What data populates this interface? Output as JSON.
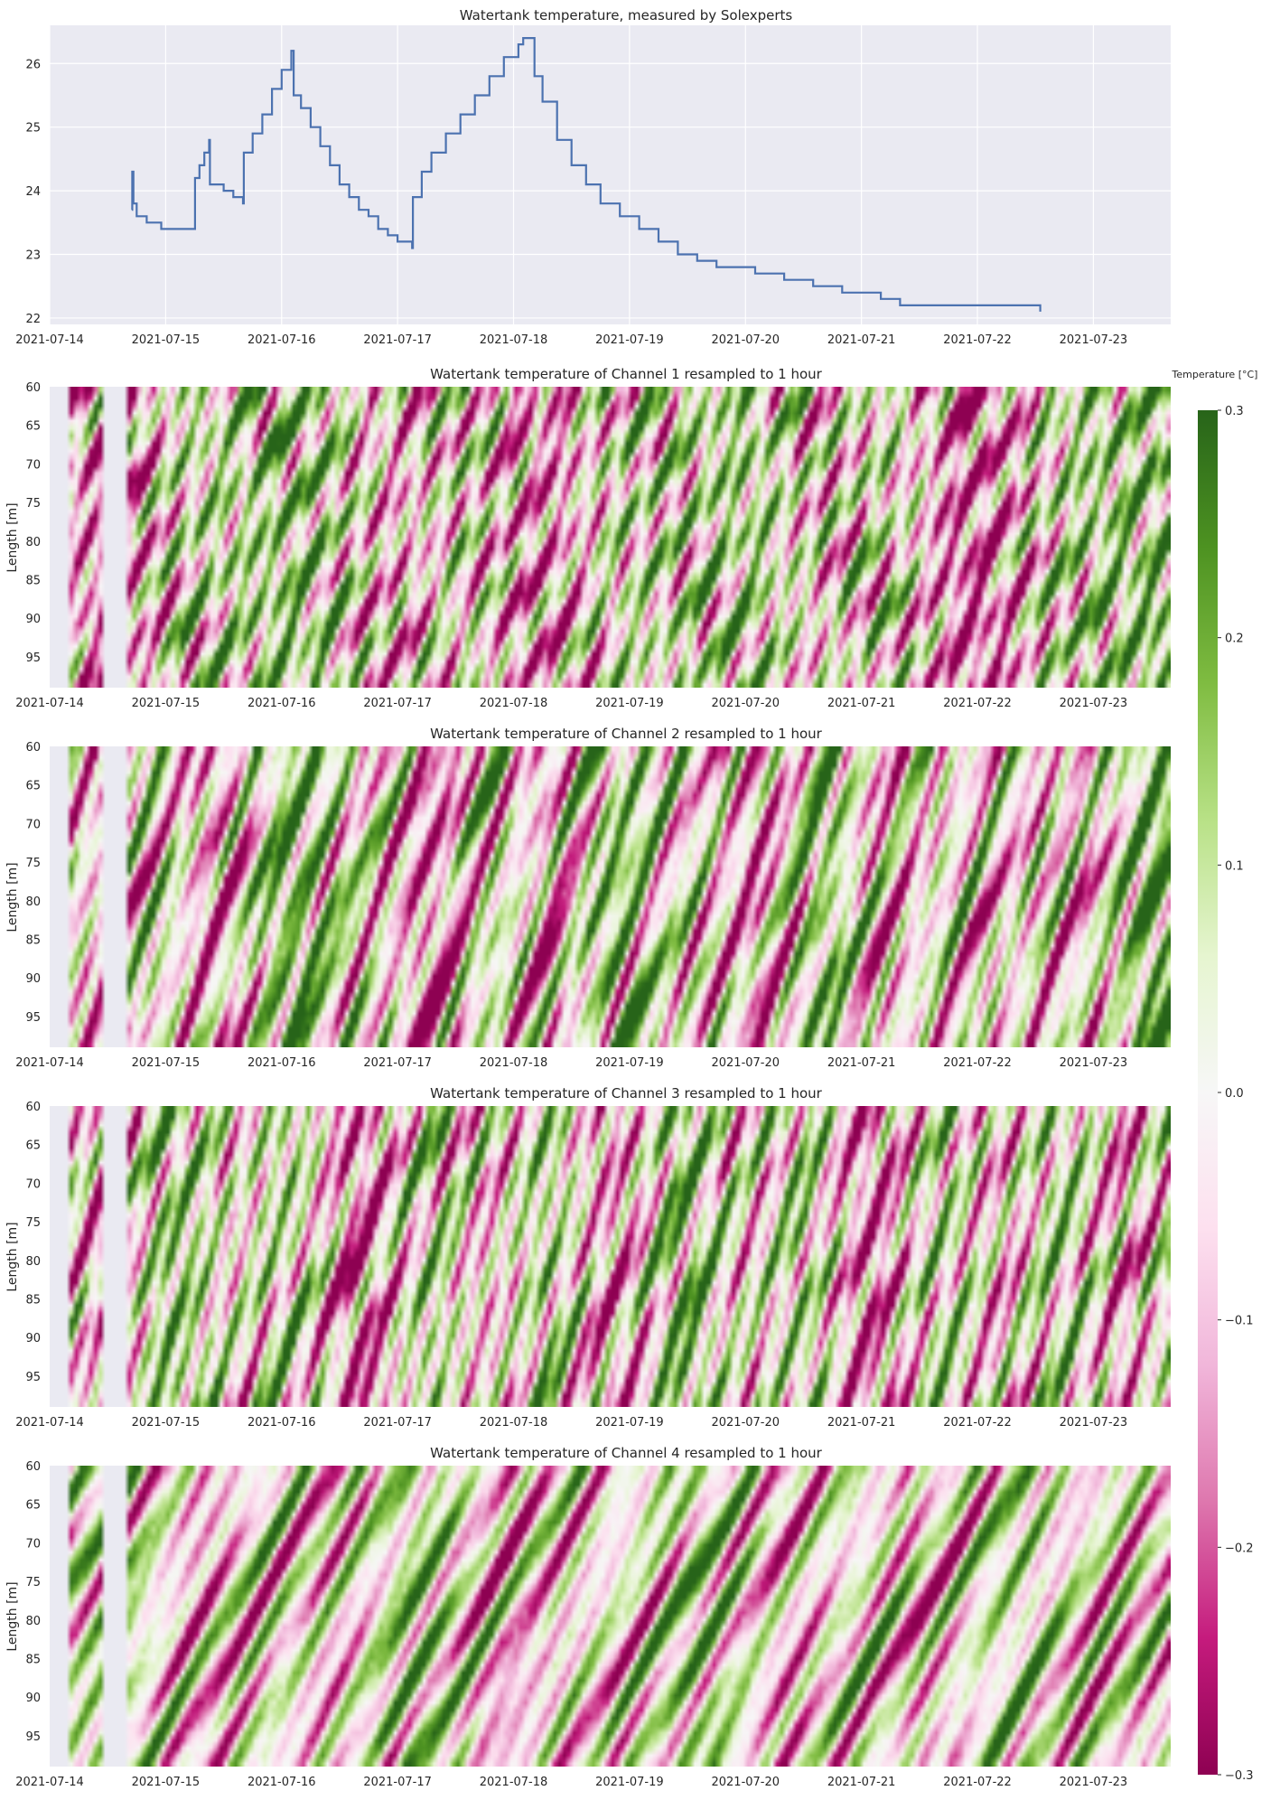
{
  "chart_data": [
    {
      "type": "line",
      "title": "Watertank temperature, measured by Solexperts",
      "xlabel": "",
      "ylabel": "",
      "xlim": [
        "2021-07-14T00:00",
        "2021-07-23T16:00"
      ],
      "ylim": [
        21.9,
        26.6
      ],
      "x_ticks": [
        "2021-07-14",
        "2021-07-15",
        "2021-07-16",
        "2021-07-17",
        "2021-07-18",
        "2021-07-19",
        "2021-07-20",
        "2021-07-21",
        "2021-07-22",
        "2021-07-23"
      ],
      "y_ticks": [
        22,
        23,
        24,
        25,
        26
      ],
      "grid": true,
      "series": [
        {
          "color": "#4c72b0",
          "points": [
            [
              "2021-07-14T17:00",
              23.7
            ],
            [
              "2021-07-14T17:05",
              24.3
            ],
            [
              "2021-07-14T17:20",
              23.8
            ],
            [
              "2021-07-14T18:00",
              23.6
            ],
            [
              "2021-07-14T20:00",
              23.6
            ],
            [
              "2021-07-14T20:05",
              23.5
            ],
            [
              "2021-07-14T23:00",
              23.5
            ],
            [
              "2021-07-14T23:05",
              23.4
            ],
            [
              "2021-07-15T06:00",
              23.4
            ],
            [
              "2021-07-15T06:05",
              24.2
            ],
            [
              "2021-07-15T07:00",
              24.4
            ],
            [
              "2021-07-15T08:00",
              24.6
            ],
            [
              "2021-07-15T09:00",
              24.8
            ],
            [
              "2021-07-15T09:10",
              24.1
            ],
            [
              "2021-07-15T12:00",
              24.0
            ],
            [
              "2021-07-15T14:00",
              23.9
            ],
            [
              "2021-07-15T16:00",
              23.8
            ],
            [
              "2021-07-15T16:10",
              24.6
            ],
            [
              "2021-07-15T18:00",
              24.9
            ],
            [
              "2021-07-15T20:00",
              25.2
            ],
            [
              "2021-07-15T22:00",
              25.6
            ],
            [
              "2021-07-16T00:00",
              25.9
            ],
            [
              "2021-07-16T02:00",
              26.2
            ],
            [
              "2021-07-16T02:30",
              25.5
            ],
            [
              "2021-07-16T04:00",
              25.3
            ],
            [
              "2021-07-16T06:00",
              25.0
            ],
            [
              "2021-07-16T08:00",
              24.7
            ],
            [
              "2021-07-16T10:00",
              24.4
            ],
            [
              "2021-07-16T12:00",
              24.1
            ],
            [
              "2021-07-16T14:00",
              23.9
            ],
            [
              "2021-07-16T16:00",
              23.7
            ],
            [
              "2021-07-16T18:00",
              23.6
            ],
            [
              "2021-07-16T20:00",
              23.4
            ],
            [
              "2021-07-16T22:00",
              23.3
            ],
            [
              "2021-07-17T00:00",
              23.2
            ],
            [
              "2021-07-17T03:00",
              23.1
            ],
            [
              "2021-07-17T03:10",
              23.9
            ],
            [
              "2021-07-17T05:00",
              24.3
            ],
            [
              "2021-07-17T07:00",
              24.6
            ],
            [
              "2021-07-17T10:00",
              24.9
            ],
            [
              "2021-07-17T13:00",
              25.2
            ],
            [
              "2021-07-17T16:00",
              25.5
            ],
            [
              "2021-07-17T19:00",
              25.8
            ],
            [
              "2021-07-17T22:00",
              26.1
            ],
            [
              "2021-07-18T01:00",
              26.3
            ],
            [
              "2021-07-18T02:00",
              26.4
            ],
            [
              "2021-07-18T04:00",
              26.4
            ],
            [
              "2021-07-18T04:20",
              25.8
            ],
            [
              "2021-07-18T06:00",
              25.4
            ],
            [
              "2021-07-18T09:00",
              24.8
            ],
            [
              "2021-07-18T12:00",
              24.4
            ],
            [
              "2021-07-18T15:00",
              24.1
            ],
            [
              "2021-07-18T18:00",
              23.8
            ],
            [
              "2021-07-18T22:00",
              23.6
            ],
            [
              "2021-07-19T02:00",
              23.4
            ],
            [
              "2021-07-19T06:00",
              23.2
            ],
            [
              "2021-07-19T10:00",
              23.0
            ],
            [
              "2021-07-19T14:00",
              22.9
            ],
            [
              "2021-07-19T18:00",
              22.8
            ],
            [
              "2021-07-20T02:00",
              22.7
            ],
            [
              "2021-07-20T08:00",
              22.6
            ],
            [
              "2021-07-20T14:00",
              22.5
            ],
            [
              "2021-07-20T20:00",
              22.4
            ],
            [
              "2021-07-21T04:00",
              22.3
            ],
            [
              "2021-07-21T08:00",
              22.2
            ],
            [
              "2021-07-22T12:00",
              22.2
            ],
            [
              "2021-07-22T13:00",
              22.1
            ]
          ]
        }
      ]
    },
    {
      "type": "heatmap",
      "title": "Watertank temperature of Channel 1 resampled to 1 hour",
      "ylabel": "Length [m]",
      "xlim": [
        "2021-07-14T00:00",
        "2021-07-23T16:00"
      ],
      "ylim": [
        60,
        99
      ],
      "y_ticks": [
        60,
        65,
        70,
        75,
        80,
        85,
        90,
        95
      ],
      "x_ticks": [
        "2021-07-14",
        "2021-07-15",
        "2021-07-16",
        "2021-07-17",
        "2021-07-18",
        "2021-07-19",
        "2021-07-20",
        "2021-07-21",
        "2021-07-22",
        "2021-07-23"
      ],
      "colormap": "PiYG",
      "no_data": [
        [
          "2021-07-14T00:00",
          "2021-07-14T04:00"
        ],
        [
          "2021-07-14T11:00",
          "2021-07-14T16:00"
        ]
      ]
    },
    {
      "type": "heatmap",
      "title": "Watertank temperature of Channel 2 resampled to 1 hour",
      "ylabel": "Length [m]",
      "xlim": [
        "2021-07-14T00:00",
        "2021-07-23T16:00"
      ],
      "ylim": [
        60,
        99
      ],
      "y_ticks": [
        60,
        65,
        70,
        75,
        80,
        85,
        90,
        95
      ],
      "x_ticks": [
        "2021-07-14",
        "2021-07-15",
        "2021-07-16",
        "2021-07-17",
        "2021-07-18",
        "2021-07-19",
        "2021-07-20",
        "2021-07-21",
        "2021-07-22",
        "2021-07-23"
      ],
      "colormap": "PiYG",
      "no_data": [
        [
          "2021-07-14T00:00",
          "2021-07-14T04:00"
        ],
        [
          "2021-07-14T11:00",
          "2021-07-14T16:00"
        ]
      ]
    },
    {
      "type": "heatmap",
      "title": "Watertank temperature of Channel 3 resampled to 1 hour",
      "ylabel": "Length [m]",
      "xlim": [
        "2021-07-14T00:00",
        "2021-07-23T16:00"
      ],
      "ylim": [
        60,
        99
      ],
      "y_ticks": [
        60,
        65,
        70,
        75,
        80,
        85,
        90,
        95
      ],
      "x_ticks": [
        "2021-07-14",
        "2021-07-15",
        "2021-07-16",
        "2021-07-17",
        "2021-07-18",
        "2021-07-19",
        "2021-07-20",
        "2021-07-21",
        "2021-07-22",
        "2021-07-23"
      ],
      "colormap": "PiYG",
      "no_data": [
        [
          "2021-07-14T00:00",
          "2021-07-14T04:00"
        ],
        [
          "2021-07-14T11:00",
          "2021-07-14T16:00"
        ]
      ]
    },
    {
      "type": "heatmap",
      "title": "Watertank temperature of Channel 4 resampled to 1 hour",
      "ylabel": "Length [m]",
      "xlim": [
        "2021-07-14T00:00",
        "2021-07-23T16:00"
      ],
      "ylim": [
        60,
        99
      ],
      "y_ticks": [
        60,
        65,
        70,
        75,
        80,
        85,
        90,
        95
      ],
      "x_ticks": [
        "2021-07-14",
        "2021-07-15",
        "2021-07-16",
        "2021-07-17",
        "2021-07-18",
        "2021-07-19",
        "2021-07-20",
        "2021-07-21",
        "2021-07-22",
        "2021-07-23"
      ],
      "colormap": "PiYG",
      "no_data": [
        [
          "2021-07-14T00:00",
          "2021-07-14T04:00"
        ],
        [
          "2021-07-14T11:00",
          "2021-07-14T16:00"
        ]
      ]
    }
  ],
  "colorbar": {
    "label": "Temperature [°C]",
    "range": [
      -0.3,
      0.3
    ],
    "ticks": [
      "0.3",
      "0.2",
      "0.1",
      "0.0",
      "−0.1",
      "−0.2",
      "−0.3"
    ],
    "colormap": "PiYG",
    "colors": {
      "max": "#276419",
      "high": "#7fbc41",
      "mid": "#f7f7f7",
      "low": "#de77ae",
      "min": "#8e0152"
    }
  },
  "style": {
    "axes_bg": "#eaeaf2",
    "grid_color": "#ffffff",
    "line_color": "#4c72b0"
  }
}
